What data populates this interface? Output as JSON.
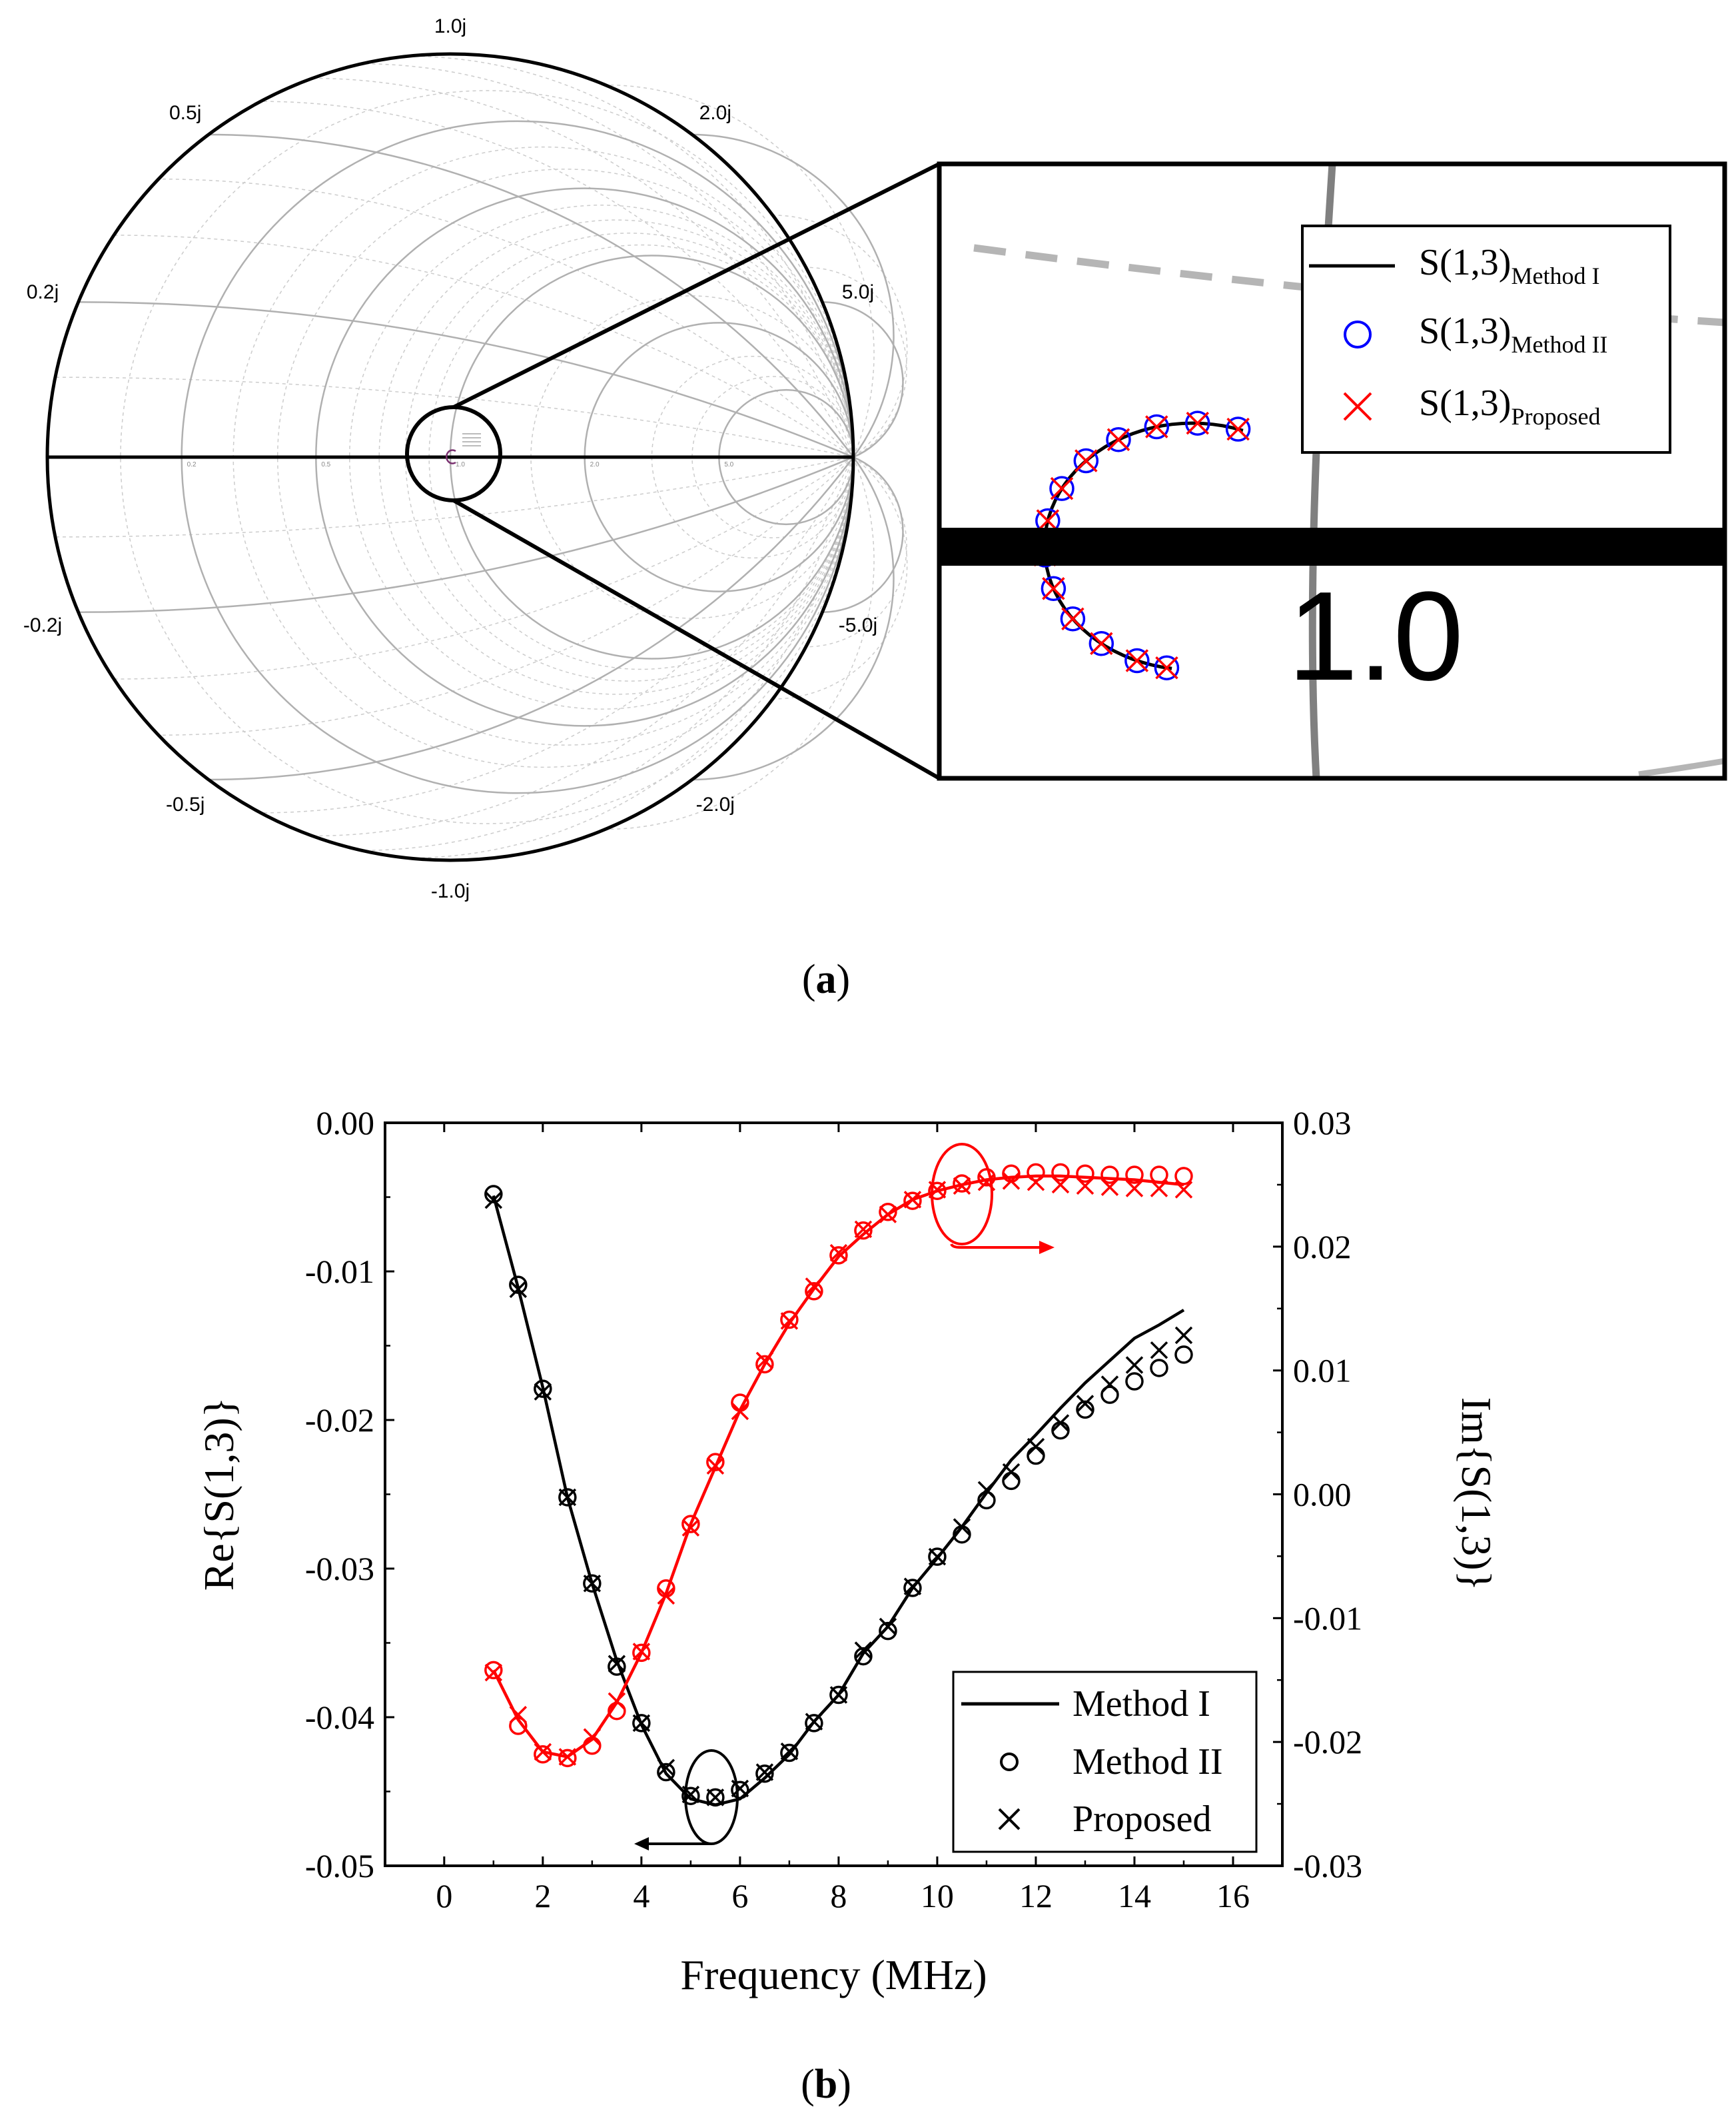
{
  "panel_a": {
    "label_open": "(",
    "label_letter": "a",
    "label_close": ")",
    "smith": {
      "outer_labels": [
        {
          "text": "1.0j",
          "gamma_re": 0.0,
          "gamma_im": 1.0
        },
        {
          "text": "0.5j",
          "gamma_re": -0.6,
          "gamma_im": 0.8
        },
        {
          "text": "2.0j",
          "gamma_re": 0.6,
          "gamma_im": 0.8
        },
        {
          "text": "0.2j",
          "gamma_re": -0.923,
          "gamma_im": 0.385
        },
        {
          "text": "5.0j",
          "gamma_re": 0.923,
          "gamma_im": 0.385
        },
        {
          "text": "-0.2j",
          "gamma_re": -0.923,
          "gamma_im": -0.385
        },
        {
          "text": "-5.0j",
          "gamma_re": 0.923,
          "gamma_im": -0.385
        },
        {
          "text": "-0.5j",
          "gamma_re": -0.6,
          "gamma_im": -0.8
        },
        {
          "text": "-2.0j",
          "gamma_re": 0.6,
          "gamma_im": -0.8
        },
        {
          "text": "-1.0j",
          "gamma_re": 0.0,
          "gamma_im": -1.0
        }
      ],
      "resistance_circles": [
        0.2,
        0.5,
        1.0,
        2.0,
        5.0
      ],
      "reactance_arcs": [
        0.2,
        0.5,
        1.0,
        2.0,
        5.0
      ],
      "minor_resistance_circles": [
        0.1,
        0.3,
        0.4,
        0.6,
        0.7,
        0.8,
        0.9,
        1.5,
        3.0,
        4.0
      ],
      "minor_reactance_arcs": [
        0.1,
        0.3,
        0.4,
        0.6,
        0.7,
        0.8,
        0.9,
        1.5,
        3.0,
        4.0
      ],
      "axis_labels": [
        {
          "text": "0.2",
          "r": 0.2
        },
        {
          "text": "0.5",
          "r": 0.5
        },
        {
          "text": "1.0",
          "r": 1.0
        },
        {
          "text": "2.0",
          "r": 2.0
        },
        {
          "text": "5.0",
          "r": 5.0
        }
      ]
    },
    "inset": {
      "big_label": "1.0",
      "legend": [
        {
          "base": "S(1,3)",
          "sub": "Method I",
          "marker": "line",
          "color": "#000000"
        },
        {
          "base": "S(1,3)",
          "sub": "Method II",
          "marker": "circle",
          "color": "#0000ff"
        },
        {
          "base": "S(1,3)",
          "sub": "Proposed",
          "marker": "cross",
          "color": "#ff0000"
        }
      ]
    }
  },
  "panel_b": {
    "label_open": "(",
    "label_letter": "b",
    "label_close": ")",
    "legend": [
      {
        "label": "Method I",
        "marker": "line"
      },
      {
        "label": "Method II",
        "marker": "circle"
      },
      {
        "label": "Proposed",
        "marker": "cross"
      }
    ]
  },
  "colors": {
    "real_series": "#000000",
    "imag_series": "#ff0000",
    "method2_inset": "#0000ff",
    "grid": "#b0b0b0"
  },
  "chart_data": {
    "type": "line",
    "title": "",
    "xlabel": "Frequency (MHz)",
    "ylabel": "Re{S(1,3)}",
    "y2label": "Im{S(1,3)}",
    "xlim": [
      -1.2,
      17
    ],
    "ylim": [
      -0.05,
      0.0
    ],
    "y2lim": [
      -0.03,
      0.03
    ],
    "x_ticks": [
      0,
      2,
      4,
      6,
      8,
      10,
      12,
      14,
      16
    ],
    "x_tick_labels": [
      "0",
      "2",
      "4",
      "6",
      "8",
      "10",
      "12",
      "14",
      "16"
    ],
    "y_ticks": [
      0.0,
      -0.01,
      -0.02,
      -0.03,
      -0.04,
      -0.05
    ],
    "y_tick_labels": [
      "0.00",
      "-0.01",
      "-0.02",
      "-0.03",
      "-0.04",
      "-0.05"
    ],
    "y2_ticks": [
      0.03,
      0.02,
      0.01,
      0.0,
      -0.01,
      -0.02,
      -0.03
    ],
    "y2_tick_labels": [
      "0.03",
      "0.02",
      "0.01",
      "0.00",
      "-0.01",
      "-0.02",
      "-0.03"
    ],
    "x": [
      1,
      1.5,
      2,
      2.5,
      3,
      3.5,
      4,
      4.5,
      5,
      5.5,
      6,
      6.5,
      7,
      7.5,
      8,
      8.5,
      9,
      9.5,
      10,
      10.5,
      11,
      11.5,
      12,
      12.5,
      13,
      13.5,
      14,
      14.5,
      15
    ],
    "series": [
      {
        "name": "Re Method I",
        "axis": "left",
        "marker": "line",
        "values": [
          -0.0049,
          -0.0111,
          -0.0178,
          -0.0252,
          -0.031,
          -0.0362,
          -0.0405,
          -0.0438,
          -0.0455,
          -0.0459,
          -0.0455,
          -0.0441,
          -0.0425,
          -0.0403,
          -0.0385,
          -0.0357,
          -0.0339,
          -0.0313,
          -0.0293,
          -0.0272,
          -0.0249,
          -0.0227,
          -0.021,
          -0.0192,
          -0.0175,
          -0.016,
          -0.0145,
          -0.0136,
          -0.0126
        ]
      },
      {
        "name": "Re Method II",
        "axis": "left",
        "marker": "circle",
        "values": [
          -0.0048,
          -0.0109,
          -0.0179,
          -0.0252,
          -0.031,
          -0.0366,
          -0.0404,
          -0.0437,
          -0.0453,
          -0.0454,
          -0.0449,
          -0.0438,
          -0.0424,
          -0.0404,
          -0.0385,
          -0.0359,
          -0.0342,
          -0.0313,
          -0.0292,
          -0.0277,
          -0.0254,
          -0.0241,
          -0.0224,
          -0.0207,
          -0.0193,
          -0.0183,
          -0.0174,
          -0.0165,
          -0.0156
        ]
      },
      {
        "name": "Re Proposed",
        "axis": "left",
        "marker": "cross",
        "values": [
          -0.0052,
          -0.0112,
          -0.0181,
          -0.0252,
          -0.031,
          -0.0364,
          -0.0404,
          -0.0434,
          -0.0452,
          -0.0454,
          -0.0448,
          -0.0437,
          -0.0423,
          -0.0403,
          -0.0385,
          -0.0355,
          -0.0339,
          -0.0312,
          -0.0292,
          -0.0272,
          -0.0247,
          -0.0235,
          -0.0218,
          -0.0202,
          -0.0189,
          -0.0176,
          -0.0163,
          -0.0153,
          -0.0143
        ]
      },
      {
        "name": "Im Method I",
        "axis": "right",
        "marker": "line",
        "values": [
          -0.0142,
          -0.0182,
          -0.0208,
          -0.0212,
          -0.0198,
          -0.0168,
          -0.0128,
          -0.008,
          -0.0024,
          0.0022,
          0.0068,
          0.0105,
          0.0138,
          0.0166,
          0.0192,
          0.021,
          0.0226,
          0.0238,
          0.0245,
          0.025,
          0.0254,
          0.0256,
          0.0257,
          0.0257,
          0.0256,
          0.0255,
          0.0254,
          0.0252,
          0.025
        ]
      },
      {
        "name": "Im Method II",
        "axis": "right",
        "marker": "circle",
        "values": [
          -0.0142,
          -0.0187,
          -0.021,
          -0.0213,
          -0.0203,
          -0.0175,
          -0.0128,
          -0.0076,
          -0.0024,
          0.0026,
          0.0074,
          0.0105,
          0.0141,
          0.0164,
          0.0193,
          0.0213,
          0.0228,
          0.0237,
          0.0245,
          0.0251,
          0.0256,
          0.0259,
          0.026,
          0.026,
          0.0259,
          0.0258,
          0.0258,
          0.0258,
          0.0257
        ]
      },
      {
        "name": "Im Proposed",
        "axis": "right",
        "marker": "cross",
        "values": [
          -0.0144,
          -0.0178,
          -0.0208,
          -0.0212,
          -0.0196,
          -0.0167,
          -0.0127,
          -0.0082,
          -0.0027,
          0.0023,
          0.0067,
          0.0108,
          0.014,
          0.0168,
          0.0195,
          0.0214,
          0.0226,
          0.0238,
          0.0246,
          0.0249,
          0.0252,
          0.0253,
          0.0252,
          0.025,
          0.0249,
          0.0248,
          0.0247,
          0.0247,
          0.0246
        ]
      }
    ]
  }
}
